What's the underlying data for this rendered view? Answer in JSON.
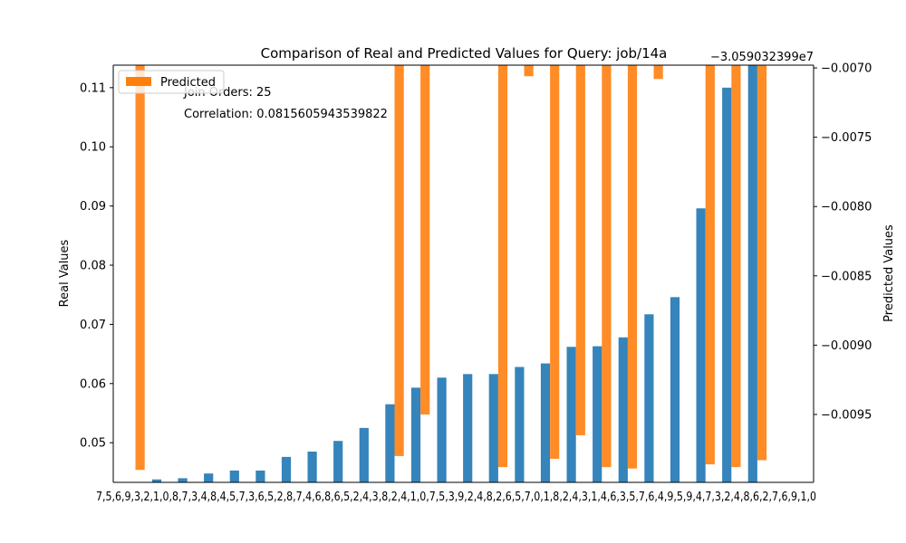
{
  "chart_data": {
    "type": "bar",
    "title": "Comparison of Real and Predicted Values for Query: job/14a",
    "ylabel": "Real Values",
    "y2label": "Predicted Values",
    "y2_offset_label": "−3.059032399e7",
    "ylim": [
      0.0433,
      0.1138
    ],
    "y2lim": [
      -0.00999,
      -0.00698
    ],
    "yticks": [
      0.05,
      0.06,
      0.07,
      0.08,
      0.09,
      0.1,
      0.11
    ],
    "ytick_labels": [
      "0.05",
      "0.06",
      "0.07",
      "0.08",
      "0.09",
      "0.10",
      "0.11"
    ],
    "y2ticks": [
      -0.0095,
      -0.009,
      -0.0085,
      -0.008,
      -0.0075,
      -0.007
    ],
    "y2tick_labels": [
      "−0.0095",
      "−0.0090",
      "−0.0085",
      "−0.0080",
      "−0.0075",
      "−0.0070"
    ],
    "legend": {
      "position": "top-left",
      "entries": [
        "Predicted"
      ]
    },
    "annotations": [
      "Join Orders: 25",
      "Correlation: 0.0815605943539822"
    ],
    "x_tick_labels_overlapping_text": "7,5,6,9,3,2,1,0,8,7,3,4,8,4,5,7,3,6,5,2,8,7,4,6,8,6,5,2,4,3,8,2,4,1,0,7,5,3,9,2,4,8,2,6,5,7,0,1,8,2,4,3,1,4,6,3,5,7,6,4,9,5,9,4,7,3,2,4,8,6,2,7,6,9,1,0",
    "series": [
      {
        "name": "Real",
        "color": "#1f77b4",
        "values": [
          0.043,
          0.0438,
          0.044,
          0.0448,
          0.0453,
          0.0453,
          0.0476,
          0.0485,
          0.0503,
          0.0525,
          0.0565,
          0.0593,
          0.061,
          0.0616,
          0.0616,
          0.0628,
          0.0634,
          0.0662,
          0.0663,
          0.0678,
          0.0717,
          0.0746,
          0.0896,
          0.11,
          0.114
        ]
      },
      {
        "name": "Predicted",
        "color": "#ff7f0e",
        "values": [
          -0.0099,
          -0.00694,
          -0.00694,
          -0.00694,
          -0.00694,
          -0.00694,
          -0.00694,
          -0.00694,
          -0.00694,
          -0.00694,
          -0.0098,
          -0.0095,
          -0.00694,
          -0.00694,
          -0.00988,
          -0.00706,
          -0.00982,
          -0.00965,
          -0.00988,
          -0.00989,
          -0.00708,
          -0.00694,
          -0.00986,
          -0.00988,
          -0.00983
        ]
      }
    ]
  }
}
